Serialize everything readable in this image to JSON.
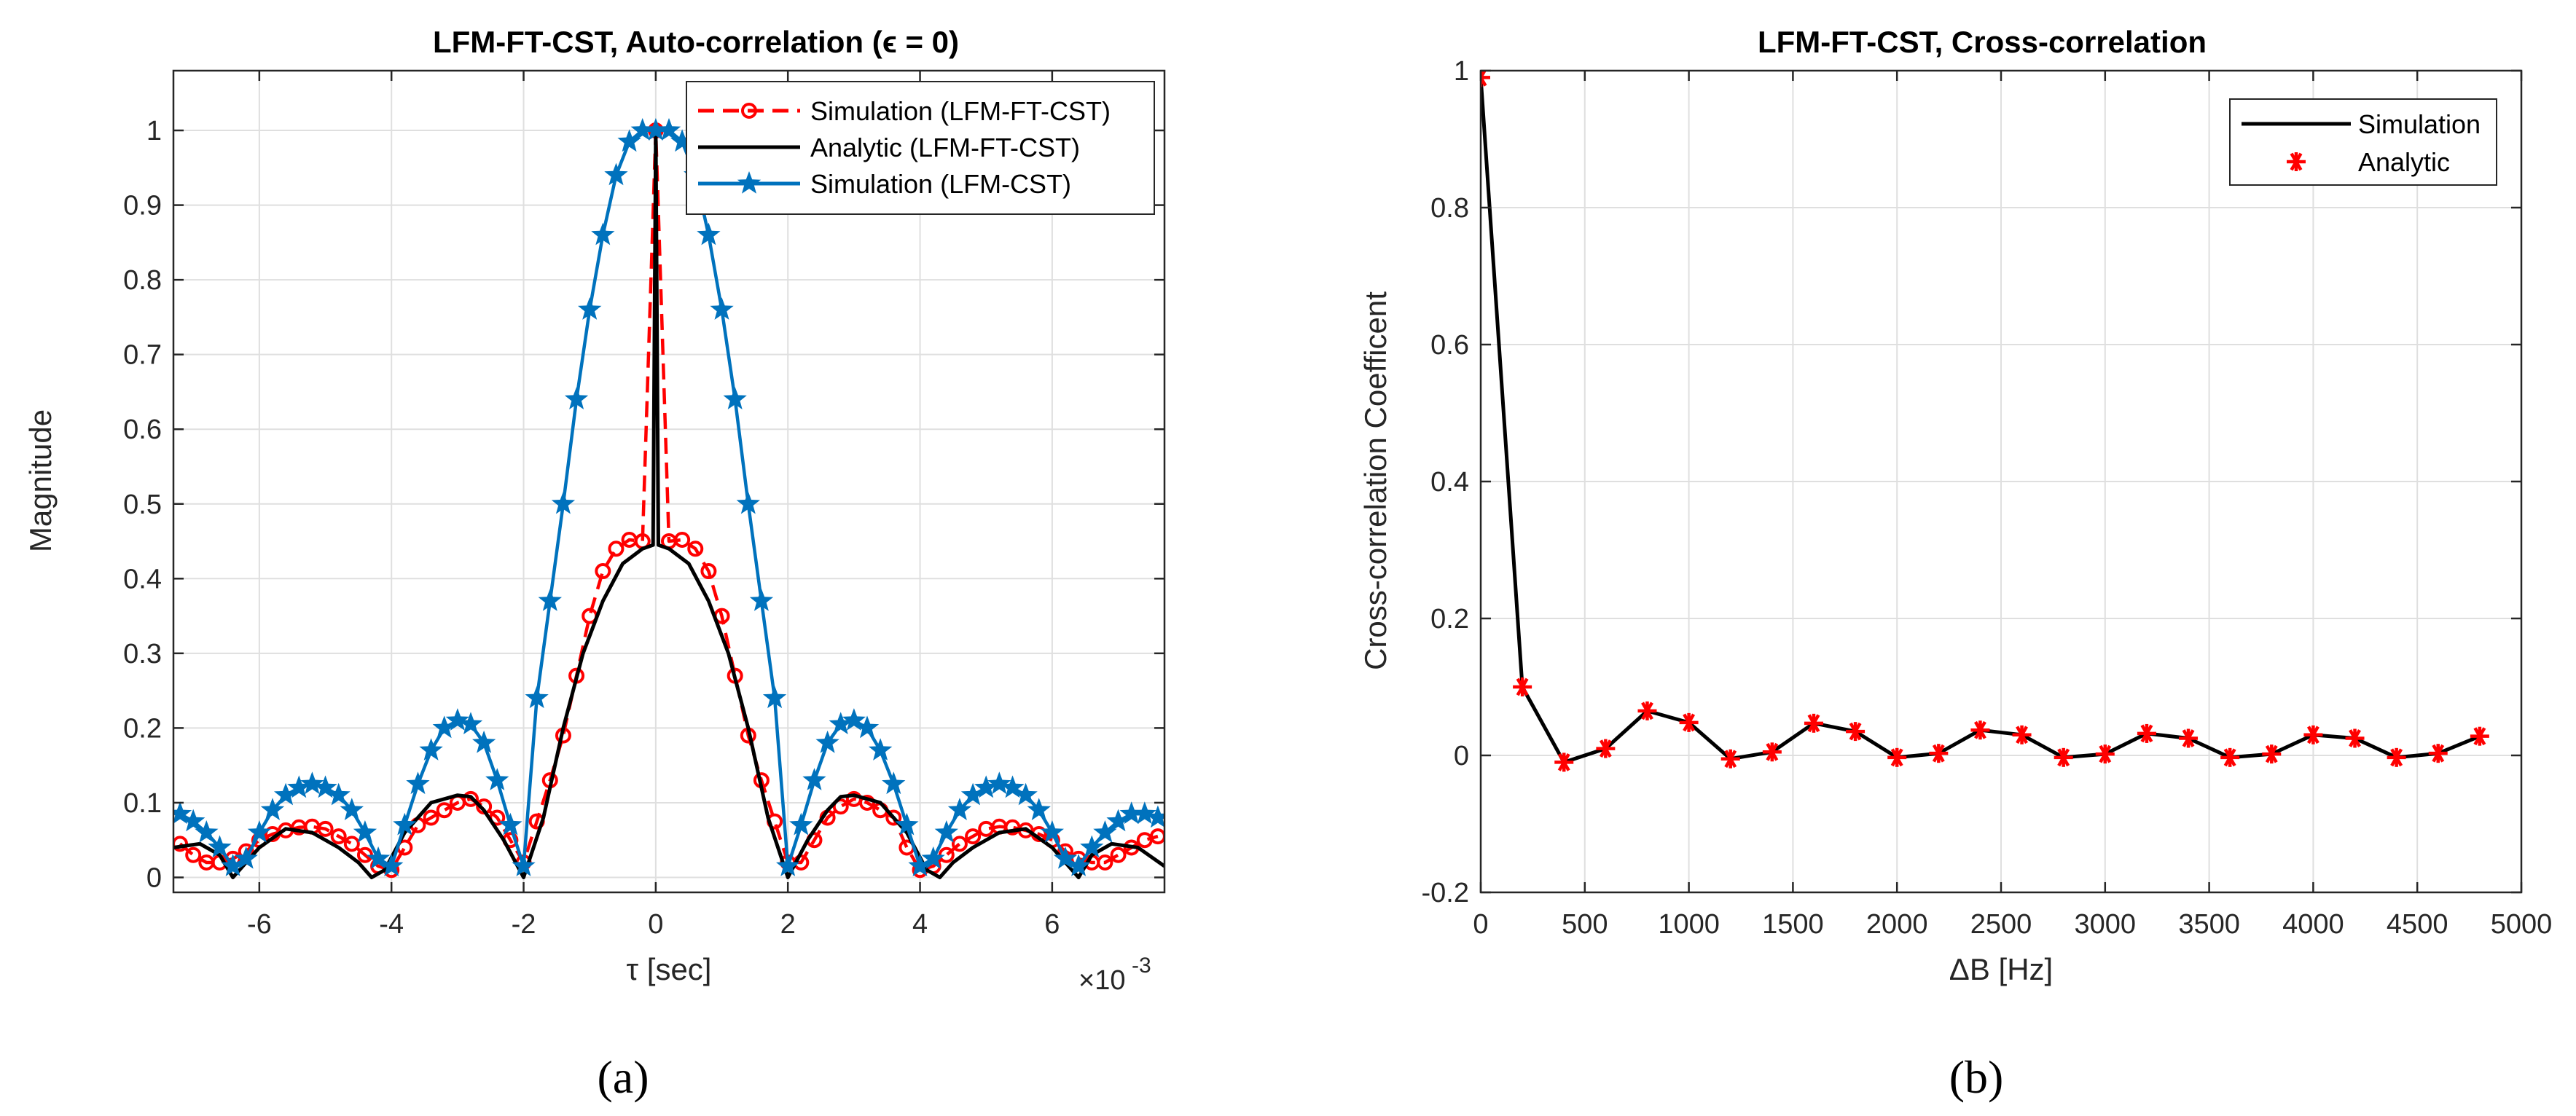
{
  "chart_data": [
    {
      "type": "line",
      "title": "LFM-FT-CST, Auto-correlation (ϵ = 0)",
      "xlabel": "τ [sec]",
      "ylabel": "Magnitude",
      "x_exponent_label": "×10",
      "x_exponent": "-3",
      "xlim": [
        -7.3,
        7.7
      ],
      "ylim": [
        -0.02,
        1.08
      ],
      "xticks": [
        -6,
        -4,
        -2,
        0,
        2,
        4,
        6
      ],
      "xtick_labels": [
        "-6",
        "-4",
        "-2",
        "0",
        "2",
        "4",
        "6"
      ],
      "yticks": [
        0,
        0.1,
        0.2,
        0.3,
        0.4,
        0.5,
        0.6,
        0.7,
        0.8,
        0.9,
        1
      ],
      "ytick_labels": [
        "0",
        "0.1",
        "0.2",
        "0.3",
        "0.4",
        "0.5",
        "0.6",
        "0.7",
        "0.8",
        "0.9",
        "1"
      ],
      "grid": true,
      "legend_position": "top-right",
      "series": [
        {
          "name": "Simulation (LFM-FT-CST)",
          "color": "#ff0000",
          "style": "dashed-circle",
          "x": [
            -7.2,
            -7.0,
            -6.8,
            -6.6,
            -6.4,
            -6.2,
            -6.0,
            -5.8,
            -5.6,
            -5.4,
            -5.2,
            -5.0,
            -4.8,
            -4.6,
            -4.4,
            -4.2,
            -4.0,
            -3.8,
            -3.6,
            -3.4,
            -3.2,
            -3.0,
            -2.8,
            -2.6,
            -2.4,
            -2.2,
            -2.0,
            -1.8,
            -1.6,
            -1.4,
            -1.2,
            -1.0,
            -0.8,
            -0.6,
            -0.4,
            -0.2,
            0,
            0.2,
            0.4,
            0.6,
            0.8,
            1.0,
            1.2,
            1.4,
            1.6,
            1.8,
            2.0,
            2.2,
            2.4,
            2.6,
            2.8,
            3.0,
            3.2,
            3.4,
            3.6,
            3.8,
            4.0,
            4.2,
            4.4,
            4.6,
            4.8,
            5.0,
            5.2,
            5.4,
            5.6,
            5.8,
            6.0,
            6.2,
            6.4,
            6.6,
            6.8,
            7.0,
            7.2,
            7.4,
            7.6
          ],
          "y": [
            0.045,
            0.03,
            0.02,
            0.02,
            0.025,
            0.035,
            0.05,
            0.058,
            0.063,
            0.067,
            0.068,
            0.065,
            0.055,
            0.045,
            0.03,
            0.015,
            0.01,
            0.04,
            0.07,
            0.08,
            0.09,
            0.1,
            0.105,
            0.095,
            0.08,
            0.05,
            0.02,
            0.075,
            0.13,
            0.19,
            0.27,
            0.35,
            0.41,
            0.44,
            0.452,
            0.45,
            1.0,
            0.45,
            0.452,
            0.44,
            0.41,
            0.35,
            0.27,
            0.19,
            0.13,
            0.075,
            0.02,
            0.02,
            0.05,
            0.08,
            0.095,
            0.105,
            0.1,
            0.09,
            0.08,
            0.04,
            0.01,
            0.015,
            0.03,
            0.045,
            0.055,
            0.065,
            0.068,
            0.067,
            0.063,
            0.058,
            0.05,
            0.035,
            0.025,
            0.02,
            0.02,
            0.03,
            0.04,
            0.05,
            0.055
          ]
        },
        {
          "name": "Analytic (LFM-FT-CST)",
          "color": "#000000",
          "style": "solid",
          "x": [
            -7.3,
            -6.9,
            -6.6,
            -6.4,
            -6.0,
            -5.6,
            -5.2,
            -4.8,
            -4.5,
            -4.3,
            -4.1,
            -3.8,
            -3.4,
            -3.0,
            -2.8,
            -2.6,
            -2.3,
            -2.0,
            -1.7,
            -1.4,
            -1.1,
            -0.8,
            -0.5,
            -0.2,
            -0.04,
            0,
            0.04,
            0.2,
            0.5,
            0.8,
            1.1,
            1.4,
            1.7,
            2.0,
            2.3,
            2.6,
            2.8,
            3.0,
            3.4,
            3.8,
            4.1,
            4.3,
            4.5,
            4.8,
            5.2,
            5.6,
            6.0,
            6.4,
            6.6,
            6.9,
            7.3,
            7.7
          ],
          "y": [
            0.04,
            0.045,
            0.03,
            0.0,
            0.04,
            0.065,
            0.06,
            0.04,
            0.02,
            0.0,
            0.01,
            0.06,
            0.1,
            0.11,
            0.108,
            0.09,
            0.05,
            0.0,
            0.08,
            0.2,
            0.3,
            0.37,
            0.42,
            0.44,
            0.445,
            1.0,
            0.445,
            0.44,
            0.42,
            0.37,
            0.3,
            0.2,
            0.08,
            0.0,
            0.05,
            0.09,
            0.108,
            0.11,
            0.1,
            0.06,
            0.01,
            0.0,
            0.02,
            0.04,
            0.06,
            0.065,
            0.04,
            0.0,
            0.03,
            0.045,
            0.04,
            0.015
          ]
        },
        {
          "name": "Simulation  (LFM-CST)",
          "color": "#0072bd",
          "style": "solid-star",
          "x": [
            -7.2,
            -7.0,
            -6.8,
            -6.6,
            -6.4,
            -6.2,
            -6.0,
            -5.8,
            -5.6,
            -5.4,
            -5.2,
            -5.0,
            -4.8,
            -4.6,
            -4.4,
            -4.2,
            -4.0,
            -3.8,
            -3.6,
            -3.4,
            -3.2,
            -3.0,
            -2.8,
            -2.6,
            -2.4,
            -2.2,
            -2.0,
            -1.8,
            -1.6,
            -1.4,
            -1.2,
            -1.0,
            -0.8,
            -0.6,
            -0.4,
            -0.2,
            0,
            0.2,
            0.4,
            0.6,
            0.8,
            1.0,
            1.2,
            1.4,
            1.6,
            1.8,
            2.0,
            2.2,
            2.4,
            2.6,
            2.8,
            3.0,
            3.2,
            3.4,
            3.6,
            3.8,
            4.0,
            4.2,
            4.4,
            4.6,
            4.8,
            5.0,
            5.2,
            5.4,
            5.6,
            5.8,
            6.0,
            6.2,
            6.4,
            6.6,
            6.8,
            7.0,
            7.2,
            7.4,
            7.6
          ],
          "y": [
            0.085,
            0.075,
            0.06,
            0.04,
            0.015,
            0.025,
            0.06,
            0.09,
            0.11,
            0.12,
            0.125,
            0.12,
            0.11,
            0.09,
            0.06,
            0.025,
            0.015,
            0.07,
            0.125,
            0.17,
            0.2,
            0.21,
            0.205,
            0.18,
            0.13,
            0.07,
            0.015,
            0.24,
            0.37,
            0.5,
            0.64,
            0.76,
            0.86,
            0.94,
            0.985,
            1.0,
            1.0,
            1.0,
            0.985,
            0.94,
            0.86,
            0.76,
            0.64,
            0.5,
            0.37,
            0.24,
            0.015,
            0.07,
            0.13,
            0.18,
            0.205,
            0.21,
            0.2,
            0.17,
            0.125,
            0.07,
            0.015,
            0.025,
            0.06,
            0.09,
            0.11,
            0.12,
            0.125,
            0.12,
            0.11,
            0.09,
            0.06,
            0.025,
            0.015,
            0.04,
            0.06,
            0.075,
            0.085,
            0.085,
            0.08
          ]
        }
      ]
    },
    {
      "type": "line",
      "title": "LFM-FT-CST, Cross-correlation",
      "xlabel": "ΔB [Hz]",
      "ylabel": "Cross-correlation Coefficent",
      "xlim": [
        0,
        5000
      ],
      "ylim": [
        -0.2,
        1.0
      ],
      "xticks": [
        0,
        500,
        1000,
        1500,
        2000,
        2500,
        3000,
        3500,
        4000,
        4500,
        5000
      ],
      "xtick_labels": [
        "0",
        "500",
        "1000",
        "1500",
        "2000",
        "2500",
        "3000",
        "3500",
        "4000",
        "4500",
        "5000"
      ],
      "yticks": [
        -0.2,
        0,
        0.2,
        0.4,
        0.6,
        0.8,
        1
      ],
      "ytick_labels": [
        "-0.2",
        "0",
        "0.2",
        "0.4",
        "0.6",
        "0.8",
        "1"
      ],
      "grid": true,
      "legend_position": "top-right",
      "series": [
        {
          "name": "Simulation",
          "color": "#000000",
          "style": "solid",
          "x": [
            0,
            200,
            400,
            600,
            800,
            1000,
            1200,
            1400,
            1600,
            1800,
            2000,
            2200,
            2400,
            2600,
            2800,
            3000,
            3200,
            3400,
            3600,
            3800,
            4000,
            4200,
            4400,
            4600,
            4800
          ],
          "y": [
            0.99,
            0.1,
            -0.01,
            0.01,
            0.065,
            0.048,
            -0.005,
            0.005,
            0.047,
            0.035,
            -0.003,
            0.003,
            0.037,
            0.03,
            -0.003,
            0.002,
            0.032,
            0.025,
            -0.003,
            0.002,
            0.03,
            0.025,
            -0.003,
            0.003,
            0.028
          ]
        },
        {
          "name": "Analytic",
          "color": "#ff0000",
          "style": "asterisk",
          "x": [
            0,
            200,
            400,
            600,
            800,
            1000,
            1200,
            1400,
            1600,
            1800,
            2000,
            2200,
            2400,
            2600,
            2800,
            3000,
            3200,
            3400,
            3600,
            3800,
            4000,
            4200,
            4400,
            4600,
            4800
          ],
          "y": [
            0.99,
            0.1,
            -0.01,
            0.01,
            0.065,
            0.048,
            -0.005,
            0.005,
            0.047,
            0.035,
            -0.003,
            0.003,
            0.037,
            0.03,
            -0.003,
            0.002,
            0.032,
            0.025,
            -0.003,
            0.002,
            0.03,
            0.025,
            -0.003,
            0.003,
            0.028
          ]
        }
      ]
    }
  ],
  "captions": [
    "(a)",
    "(b)"
  ]
}
